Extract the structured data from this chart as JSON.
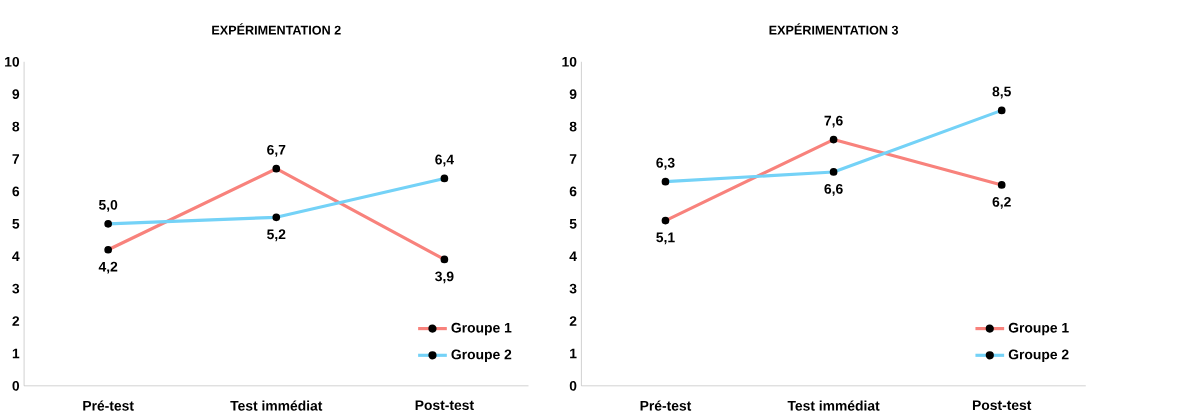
{
  "chart_data": [
    {
      "type": "line",
      "title": "EXPÉRIMENTATION 2",
      "categories": [
        "Pré-test",
        "Test immédiat",
        "Post-test"
      ],
      "series": [
        {
          "name": "Groupe 1",
          "color": "#f8827c",
          "values": [
            4.2,
            6.7,
            3.9
          ],
          "value_labels": [
            "4,2",
            "6,7",
            "3,9"
          ]
        },
        {
          "name": "Groupe 2",
          "color": "#74d2f7",
          "values": [
            5.0,
            5.2,
            6.4
          ],
          "value_labels": [
            "5,0",
            "5,2",
            "6,4"
          ]
        }
      ],
      "ylim": [
        0,
        10
      ],
      "yticks": [
        0,
        1,
        2,
        3,
        4,
        5,
        6,
        7,
        8,
        9,
        10
      ],
      "grid": false,
      "legend": "bottom right",
      "marker": "circle",
      "line_style": "solid"
    },
    {
      "type": "line",
      "title": "EXPÉRIMENTATION 3",
      "categories": [
        "Pré-test",
        "Test immédiat",
        "Post-test"
      ],
      "series": [
        {
          "name": "Groupe 1",
          "color": "#f8827c",
          "values": [
            5.1,
            7.6,
            6.2
          ],
          "value_labels": [
            "5,1",
            "7,6",
            "6,2"
          ]
        },
        {
          "name": "Groupe 2",
          "color": "#74d2f7",
          "values": [
            6.3,
            6.6,
            8.5
          ],
          "value_labels": [
            "6,3",
            "6,6",
            "8,5"
          ]
        }
      ],
      "ylim": [
        0,
        10
      ],
      "yticks": [
        0,
        1,
        2,
        3,
        4,
        5,
        6,
        7,
        8,
        9,
        10
      ],
      "grid": false,
      "legend": "bottom right",
      "marker": "circle",
      "line_style": "solid"
    }
  ]
}
